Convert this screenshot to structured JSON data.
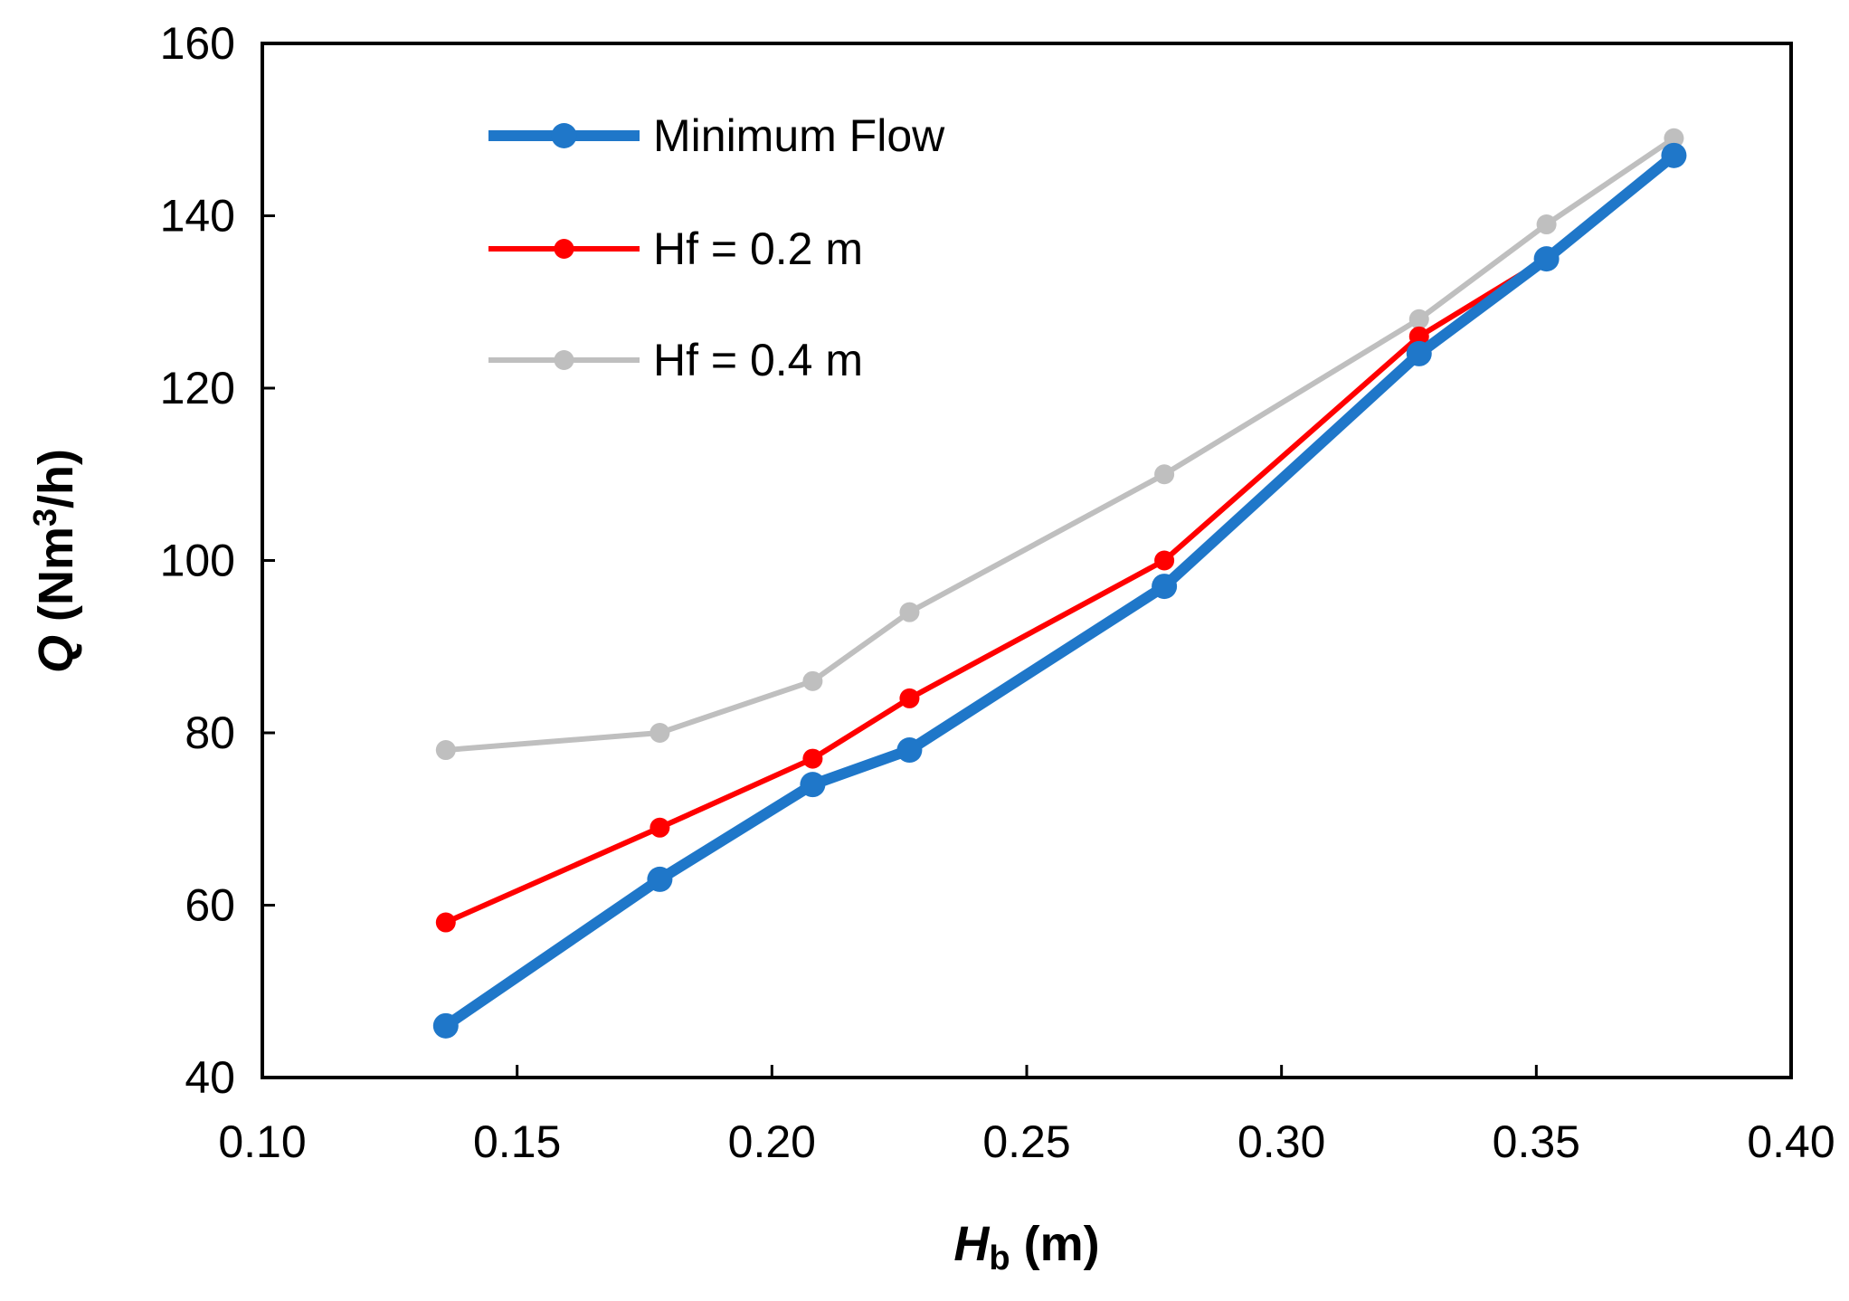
{
  "chart_data": {
    "type": "line",
    "title": "",
    "xlabel": {
      "main": "H",
      "sub": "b",
      "unit": " (m)"
    },
    "ylabel": {
      "main": "Q",
      "unit_pre": " (Nm",
      "sup": "3",
      "unit_post": "/h)"
    },
    "xlim": [
      0.1,
      0.4
    ],
    "ylim": [
      40,
      160
    ],
    "xticks": [
      0.1,
      0.15,
      0.2,
      0.25,
      0.3,
      0.35,
      0.4
    ],
    "xtick_labels": [
      "0.10",
      "0.15",
      "0.20",
      "0.25",
      "0.30",
      "0.35",
      "0.40"
    ],
    "yticks": [
      40,
      60,
      80,
      100,
      120,
      140,
      160
    ],
    "ytick_labels": [
      "40",
      "60",
      "80",
      "100",
      "120",
      "140",
      "160"
    ],
    "grid": false,
    "legend_position": "top-left",
    "series": [
      {
        "name": "Minimum Flow",
        "color": "#1f77c9",
        "style": "thick",
        "x": [
          0.136,
          0.178,
          0.208,
          0.227,
          0.277,
          0.327,
          0.352,
          0.377
        ],
        "y": [
          46,
          63,
          74,
          78,
          97,
          124,
          135,
          147
        ]
      },
      {
        "name": "Hf = 0.2 m",
        "color": "#ff0000",
        "style": "medium",
        "x": [
          0.136,
          0.178,
          0.208,
          0.227,
          0.277,
          0.327,
          0.352
        ],
        "y": [
          58,
          69,
          77,
          84,
          100,
          126,
          135
        ]
      },
      {
        "name": "Hf = 0.4 m",
        "color": "#bfbfbf",
        "style": "medium",
        "x": [
          0.136,
          0.178,
          0.208,
          0.227,
          0.277,
          0.327,
          0.352,
          0.377
        ],
        "y": [
          78,
          80,
          86,
          94,
          110,
          128,
          139,
          149
        ]
      }
    ]
  }
}
